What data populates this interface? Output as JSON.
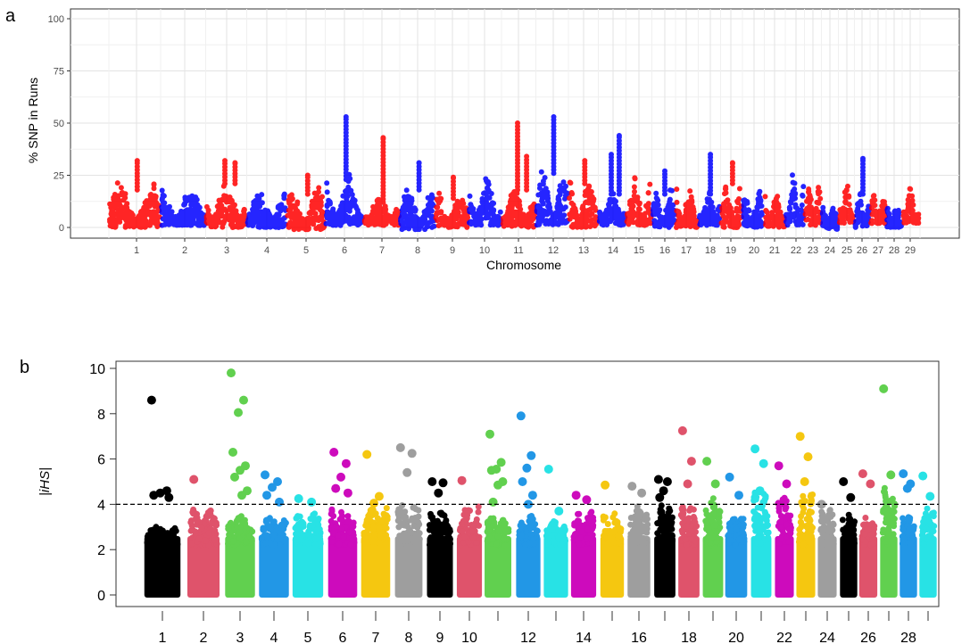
{
  "chart_data": [
    {
      "panel_label": "a",
      "type": "scatter",
      "title": "",
      "xlabel": "Chromosome",
      "ylabel": "% SNP in Runs",
      "ylim": [
        -5,
        103
      ],
      "yticks": [
        0,
        25,
        50,
        75,
        100
      ],
      "grid": true,
      "colors": [
        "#FF0000",
        "#0000FF"
      ],
      "categories": [
        "1",
        "2",
        "3",
        "4",
        "5",
        "6",
        "7",
        "8",
        "9",
        "10",
        "11",
        "12",
        "13",
        "14",
        "15",
        "16",
        "17",
        "18",
        "19",
        "20",
        "21",
        "22",
        "23",
        "24",
        "25",
        "26",
        "27",
        "28",
        "29"
      ],
      "range": [
        [
          0,
          22
        ],
        [
          1,
          20
        ],
        [
          0,
          25
        ],
        [
          0,
          20
        ],
        [
          -1,
          20
        ],
        [
          1,
          27
        ],
        [
          1,
          16
        ],
        [
          -1,
          22
        ],
        [
          0,
          18
        ],
        [
          1,
          27
        ],
        [
          0,
          22
        ],
        [
          1,
          30
        ],
        [
          0,
          25
        ],
        [
          1,
          20
        ],
        [
          1,
          27
        ],
        [
          0,
          20
        ],
        [
          0,
          21
        ],
        [
          1,
          20
        ],
        [
          0,
          25
        ],
        [
          0,
          20
        ],
        [
          0,
          20
        ],
        [
          1,
          27
        ],
        [
          1,
          25
        ],
        [
          -1,
          12
        ],
        [
          2,
          23
        ],
        [
          0,
          20
        ],
        [
          1,
          18
        ],
        [
          0,
          12
        ],
        [
          2,
          21
        ]
      ],
      "peaks": [
        [
          32
        ],
        [],
        [
          32,
          31
        ],
        [],
        [
          25
        ],
        [
          53
        ],
        [
          43
        ],
        [
          31
        ],
        [
          24
        ],
        [],
        [
          50,
          34
        ],
        [
          53
        ],
        [
          32
        ],
        [
          35,
          44
        ],
        [],
        [
          27
        ],
        [],
        [
          35
        ],
        [
          31
        ],
        [],
        [],
        [],
        [],
        [],
        [],
        [
          33
        ],
        [],
        [],
        []
      ]
    },
    {
      "panel_label": "b",
      "type": "scatter",
      "title": "",
      "xlabel": "",
      "ylabel": "|iHS|",
      "ylim": [
        -0.3,
        10.3
      ],
      "yticks": [
        0,
        2,
        4,
        6,
        8,
        10
      ],
      "threshold": 4,
      "grid": false,
      "colors": [
        "#000000",
        "#DF536B",
        "#61D04F",
        "#2297E6",
        "#28E2E5",
        "#CD0BBC",
        "#F5C710",
        "#9E9E9E"
      ],
      "categories": [
        "1",
        "2",
        "3",
        "4",
        "5",
        "6",
        "7",
        "8",
        "9",
        "10",
        "11",
        "12",
        "13",
        "14",
        "15",
        "16",
        "17",
        "18",
        "19",
        "20",
        "21",
        "22",
        "23",
        "24",
        "25",
        "26",
        "27",
        "28",
        "29"
      ],
      "tick_labels": [
        "1",
        "2",
        "3",
        "4",
        "5",
        "6",
        "7",
        "8",
        "9",
        "10",
        "",
        "12",
        "",
        "14",
        "",
        "16",
        "",
        "18",
        "",
        "20",
        "",
        "22",
        "",
        "24",
        "",
        "26",
        "",
        "28",
        ""
      ],
      "bulk_max": [
        3.0,
        3.8,
        3.5,
        3.5,
        3.6,
        3.9,
        3.9,
        4.0,
        3.7,
        4.0,
        3.5,
        3.5,
        3.3,
        3.7,
        3.6,
        4.0,
        4.0,
        4.0,
        4.3,
        3.5,
        4.6,
        4.7,
        4.5,
        3.8,
        3.6,
        3.5,
        4.8,
        3.5,
        4.0
      ],
      "top_values": [
        [
          8.6,
          4.6,
          4.5,
          4.4,
          4.3
        ],
        [
          5.1
        ],
        [
          9.8,
          8.6,
          8.05,
          6.3,
          5.7,
          5.5,
          5.2,
          4.6,
          4.4
        ],
        [
          5.3,
          5.0,
          4.75,
          4.4,
          4.1
        ],
        [
          4.25,
          4.1
        ],
        [
          6.3,
          5.8,
          5.2,
          4.7,
          4.5
        ],
        [
          6.2,
          4.35,
          4.05
        ],
        [
          6.5,
          6.25,
          5.4
        ],
        [
          5.0,
          4.95,
          4.5
        ],
        [
          5.05
        ],
        [
          7.1,
          5.85,
          5.55,
          5.5,
          5.0,
          4.85,
          4.1
        ],
        [
          7.9,
          6.15,
          5.6,
          5.0,
          4.4,
          4.0
        ],
        [
          5.55,
          3.7
        ],
        [
          4.4,
          4.2
        ],
        [
          4.85
        ],
        [
          4.8,
          4.5
        ],
        [
          5.1,
          5.0,
          4.6,
          4.3
        ],
        [
          7.25,
          5.9,
          4.9
        ],
        [
          5.9,
          4.9
        ],
        [
          5.2,
          4.4
        ],
        [
          6.45,
          5.8,
          4.6
        ],
        [
          5.7,
          4.9
        ],
        [
          7.0,
          6.1,
          5.0
        ],
        [
          4.0
        ],
        [
          5.0,
          4.3
        ],
        [
          5.35,
          4.9
        ],
        [
          9.1,
          5.3
        ],
        [
          5.35,
          4.9,
          4.7
        ],
        [
          5.25,
          4.35
        ]
      ]
    }
  ]
}
